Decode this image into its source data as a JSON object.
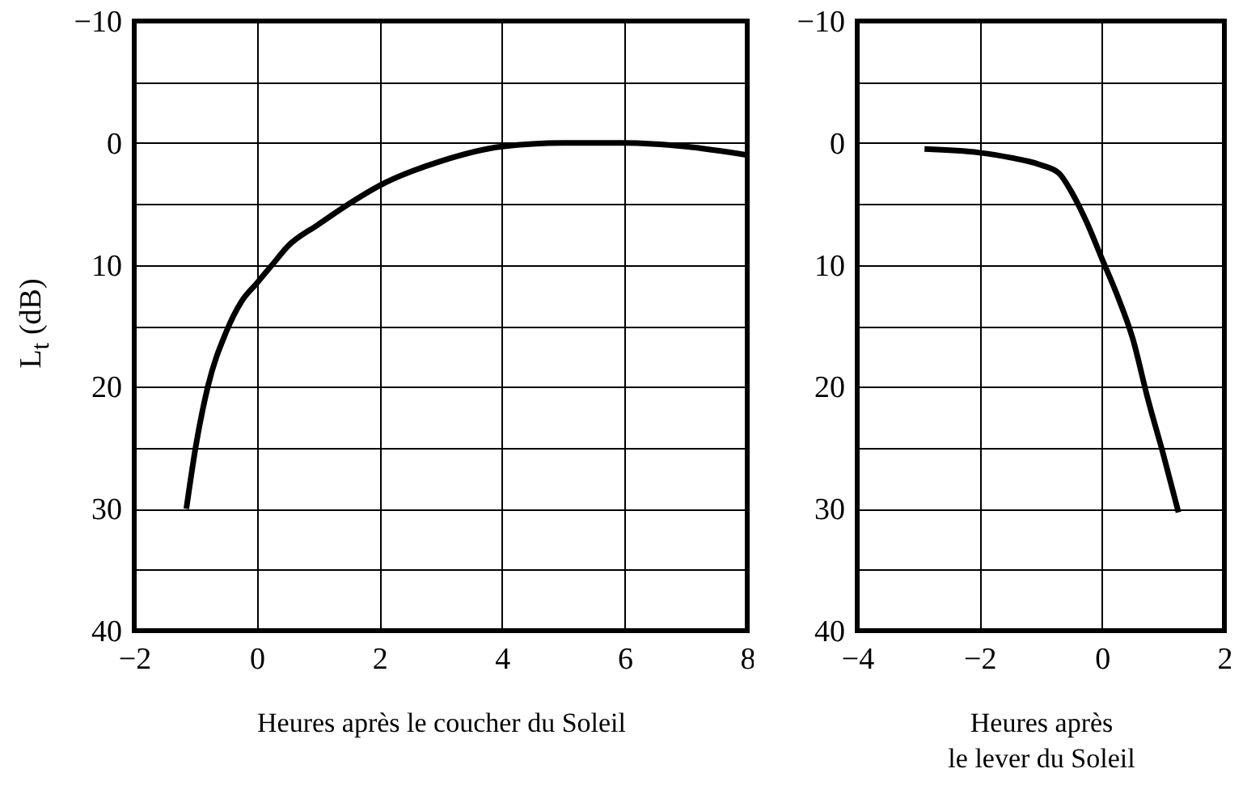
{
  "chart_data": [
    {
      "type": "line",
      "xlabel": "Heures après le coucher du Soleil",
      "ylabel": "L$_{t}$ (dB)",
      "x": [
        -1.15,
        -1.0,
        -0.8,
        -0.5,
        -0.25,
        0,
        0.25,
        0.5,
        1,
        1.5,
        2,
        3,
        4,
        5,
        6,
        7,
        8
      ],
      "series": [
        {
          "color": "#000000",
          "values": [
            30,
            25,
            20,
            15.5,
            13,
            11.5,
            10,
            8.5,
            6.7,
            5,
            3.5,
            1.5,
            0.3,
            0,
            0,
            0.3,
            1
          ]
        }
      ],
      "xlim": [
        -2,
        8
      ],
      "xticks": [
        -2,
        0,
        2,
        4,
        6,
        8
      ],
      "ylim": [
        40,
        -10
      ],
      "yticks": [
        -10,
        {
          "value": -5,
          "label": null
        },
        0,
        {
          "value": 5,
          "label": null
        },
        10,
        {
          "value": 15,
          "label": null
        },
        20,
        {
          "value": 25,
          "label": null
        },
        30,
        {
          "value": 35,
          "label": null
        },
        40
      ],
      "grid": true
    },
    {
      "type": "line",
      "xlabel": "Heures après\nle lever du Soleil",
      "x": [
        -2.9,
        -2,
        -1.5,
        -1,
        -0.7,
        -0.5,
        -0.25,
        0,
        0.25,
        0.5,
        0.75,
        1,
        1.25
      ],
      "series": [
        {
          "color": "#000000",
          "values": [
            0.5,
            0.8,
            1.2,
            1.8,
            2.5,
            4,
            6.5,
            9.5,
            12.5,
            16,
            21,
            25.5,
            30.3
          ]
        }
      ],
      "xlim": [
        -4,
        2
      ],
      "xticks": [
        -4,
        -2,
        0,
        2
      ],
      "ylim": [
        40,
        -10
      ],
      "yticks": [
        -10,
        {
          "value": -5,
          "label": null
        },
        0,
        {
          "value": 5,
          "label": null
        },
        10,
        {
          "value": 15,
          "label": null
        },
        20,
        {
          "value": 25,
          "label": null
        },
        30,
        {
          "value": 35,
          "label": null
        },
        40
      ],
      "grid": true
    }
  ]
}
